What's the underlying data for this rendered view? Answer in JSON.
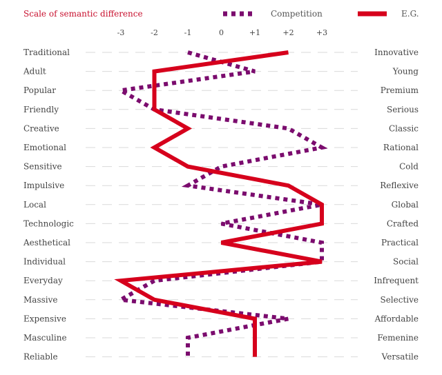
{
  "chart_data": {
    "type": "line",
    "title": "Scale of semantic difference",
    "x_ticks": [
      -3,
      -2,
      -1,
      0,
      1,
      2,
      3
    ],
    "x_tick_labels": [
      "-3",
      "-2",
      "-1",
      "0",
      "+1",
      "+2",
      "+3"
    ],
    "xlim": [
      -3,
      3
    ],
    "categories_left": [
      "Traditional",
      "Adult",
      "Popular",
      "Friendly",
      "Creative",
      "Emotional",
      "Sensitive",
      "Impulsive",
      "Local",
      "Technologic",
      "Aesthetical",
      "Individual",
      "Everyday",
      "Massive",
      "Expensive",
      "Masculine",
      "Reliable"
    ],
    "categories_right": [
      "Innovative",
      "Young",
      "Premium",
      "Serious",
      "Classic",
      "Rational",
      "Cold",
      "Reflexive",
      "Global",
      "Crafted",
      "Practical",
      "Social",
      "Infrequent",
      "Selective",
      "Affordable",
      "Femenine",
      "Versatile"
    ],
    "series": [
      {
        "name": "Competition",
        "style": "dotted",
        "color": "#7b0c6e",
        "values": [
          -1,
          1,
          -3,
          -2,
          2,
          3,
          0,
          -1,
          3,
          0,
          3,
          3,
          -2,
          -3,
          2,
          -1,
          -1
        ]
      },
      {
        "name": "E.G.",
        "style": "solid",
        "color": "#d6001c",
        "values": [
          2,
          -2,
          -2,
          -2,
          -1,
          -2,
          -1,
          2,
          3,
          3,
          0,
          3,
          -3,
          -2,
          1,
          1,
          1
        ]
      }
    ],
    "legend_position": "top-right"
  }
}
